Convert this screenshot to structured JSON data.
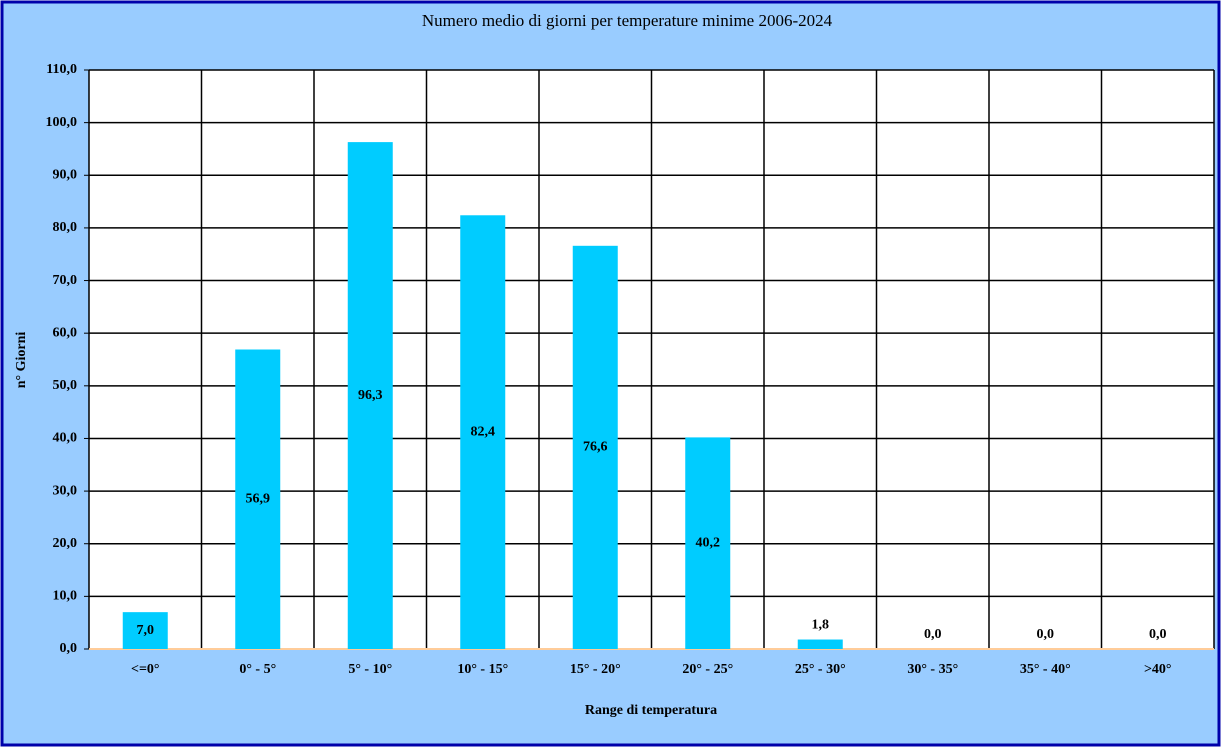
{
  "chart_data": {
    "type": "bar",
    "title": "Numero medio di giorni per temperature minime 2006-2024",
    "x_label": "Range di temperatura",
    "y_label": "n° Giorni",
    "categories": [
      "<=0°",
      "0° - 5°",
      "5° - 10°",
      "10° - 15°",
      "15° - 20°",
      "20° - 25°",
      "25° - 30°",
      "30° - 35°",
      "35° - 40°",
      ">40°"
    ],
    "values": [
      7.0,
      56.9,
      96.3,
      82.4,
      76.6,
      40.2,
      1.8,
      0.0,
      0.0,
      0.0
    ],
    "value_labels": [
      "7,0",
      "56,9",
      "96,3",
      "82,4",
      "76,6",
      "40,2",
      "1,8",
      "0,0",
      "0,0",
      "0,0"
    ],
    "color": "#00ccff",
    "ylim": [
      0,
      110
    ],
    "yticks": [
      {
        "value": 0,
        "label": "0,0"
      },
      {
        "value": 10,
        "label": "10,0"
      },
      {
        "value": 20,
        "label": "20,0"
      },
      {
        "value": 30,
        "label": "30,0"
      },
      {
        "value": 40,
        "label": "40,0"
      },
      {
        "value": 50,
        "label": "50,0"
      },
      {
        "value": 60,
        "label": "60,0"
      },
      {
        "value": 70,
        "label": "70,0"
      },
      {
        "value": 80,
        "label": "80,0"
      },
      {
        "value": 90,
        "label": "90,0"
      },
      {
        "value": 100,
        "label": "100,0"
      },
      {
        "value": 110,
        "label": "110,0"
      }
    ],
    "grid": true
  }
}
